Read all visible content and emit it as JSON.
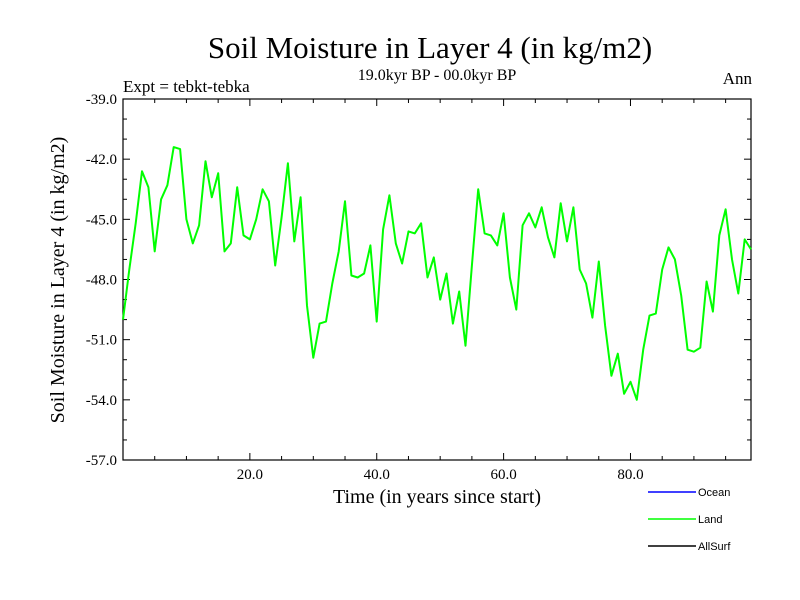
{
  "chart_data": {
    "type": "line",
    "title": "Soil Moisture in Layer 4 (in kg/m2)",
    "subtitle": "19.0kyr BP - 00.0kyr BP",
    "left_label": "Expt = tebkt-tebka",
    "right_label": "Ann",
    "xlabel": "Time (in years since start)",
    "ylabel": "Soil Moisture in Layer 4 (in kg/m2)",
    "xlim": [
      0,
      99
    ],
    "ylim": [
      -57,
      -39
    ],
    "x_ticks": [
      {
        "value": 20,
        "label": "20.0"
      },
      {
        "value": 40,
        "label": "40.0"
      },
      {
        "value": 60,
        "label": "60.0"
      },
      {
        "value": 80,
        "label": "80.0"
      }
    ],
    "y_ticks": [
      {
        "value": -39,
        "label": "-39.0"
      },
      {
        "value": -42,
        "label": "-42.0"
      },
      {
        "value": -45,
        "label": "-45.0"
      },
      {
        "value": -48,
        "label": "-48.0"
      },
      {
        "value": -51,
        "label": "-51.0"
      },
      {
        "value": -54,
        "label": "-54.0"
      },
      {
        "value": -57,
        "label": "-57.0"
      }
    ],
    "legend": [
      {
        "name": "Ocean",
        "color": "#0000ff"
      },
      {
        "name": "Land",
        "color": "#00ff00"
      },
      {
        "name": "AllSurf",
        "color": "#000000"
      }
    ],
    "series": [
      {
        "name": "Land",
        "color": "#00ff00",
        "x_start": 0,
        "x_step": 1,
        "values": [
          -50.0,
          -47.5,
          -45.2,
          -42.6,
          -43.4,
          -46.6,
          -44.0,
          -43.3,
          -41.4,
          -41.5,
          -45.0,
          -46.2,
          -45.3,
          -42.1,
          -43.9,
          -42.7,
          -46.6,
          -46.2,
          -43.4,
          -45.8,
          -46.0,
          -45.0,
          -43.5,
          -44.1,
          -47.3,
          -44.9,
          -42.2,
          -46.1,
          -43.9,
          -49.3,
          -51.9,
          -50.2,
          -50.1,
          -48.2,
          -46.6,
          -44.1,
          -47.8,
          -47.9,
          -47.7,
          -46.3,
          -50.1,
          -45.5,
          -43.8,
          -46.2,
          -47.2,
          -45.6,
          -45.7,
          -45.2,
          -47.9,
          -46.9,
          -49.0,
          -47.7,
          -50.2,
          -48.6,
          -51.3,
          -47.3,
          -43.5,
          -45.7,
          -45.8,
          -46.3,
          -44.7,
          -47.9,
          -49.5,
          -45.3,
          -44.7,
          -45.4,
          -44.4,
          -45.9,
          -46.9,
          -44.2,
          -46.1,
          -44.4,
          -47.5,
          -48.2,
          -49.9,
          -47.1,
          -50.3,
          -52.8,
          -51.7,
          -53.7,
          -53.1,
          -54.0,
          -51.5,
          -49.8,
          -49.7,
          -47.5,
          -46.4,
          -47.0,
          -48.8,
          -51.5,
          -51.6,
          -51.4,
          -48.1,
          -49.6,
          -45.8,
          -44.5,
          -47.0,
          -48.7,
          -46.0,
          -46.5
        ]
      }
    ]
  }
}
